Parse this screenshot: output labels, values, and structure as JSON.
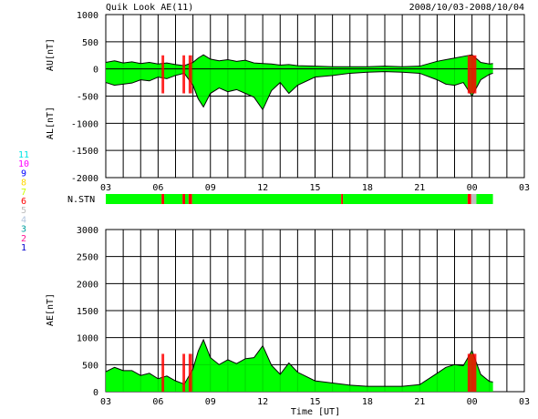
{
  "header": {
    "title": "Quik Look AE(11)",
    "date_range": "2008/10/03-2008/10/04"
  },
  "station_legend": {
    "numbers": [
      "11",
      "10",
      "9",
      "8",
      "7",
      "6",
      "5",
      "4",
      "3",
      "2",
      "1"
    ],
    "colors": [
      "#00e5e5",
      "#ff00ff",
      "#0000ff",
      "#ffd700",
      "#c8ff00",
      "#ff0000",
      "#bdbdbd",
      "#b0c4de",
      "#00a0a0",
      "#ff1493",
      "#0000cd"
    ]
  },
  "colors": {
    "fill": "#00ff00",
    "low_station": "#ff0000",
    "line": "#000000"
  },
  "chart_data": [
    {
      "type": "area",
      "name": "AU/AL",
      "ylabel_top": "AU[nT]",
      "ylabel_bottom": "AL[nT]",
      "ylim": [
        -2000,
        1000
      ],
      "yticks": [
        "1000",
        "500",
        "0",
        "-500",
        "-1000",
        "-1500",
        "-2000"
      ],
      "xticks": [
        "03",
        "06",
        "09",
        "12",
        "15",
        "18",
        "21",
        "00",
        "03"
      ],
      "xlim_hours": [
        3,
        27
      ],
      "grid": true,
      "au": {
        "x": [
          3,
          3.5,
          4,
          4.5,
          5,
          5.5,
          6,
          6.5,
          7,
          7.5,
          8,
          8.3,
          8.6,
          9,
          9.5,
          10,
          10.5,
          11,
          11.5,
          12,
          12.5,
          13,
          13.5,
          14,
          15,
          16,
          17,
          18,
          19,
          20,
          21,
          22,
          22.5,
          23,
          23.5,
          24,
          24.5,
          25,
          25.2
        ],
        "values": [
          120,
          150,
          110,
          130,
          100,
          120,
          90,
          110,
          80,
          60,
          120,
          200,
          260,
          180,
          150,
          170,
          140,
          160,
          110,
          100,
          90,
          70,
          80,
          60,
          50,
          40,
          40,
          40,
          50,
          40,
          50,
          140,
          170,
          200,
          230,
          260,
          120,
          90,
          100
        ]
      },
      "al": {
        "x": [
          3,
          3.5,
          4,
          4.5,
          5,
          5.5,
          6,
          6.5,
          7,
          7.5,
          8,
          8.3,
          8.6,
          9,
          9.5,
          10,
          10.5,
          11,
          11.5,
          12,
          12.5,
          13,
          13.5,
          14,
          15,
          16,
          17,
          18,
          19,
          20,
          21,
          22,
          22.5,
          23,
          23.5,
          24,
          24.5,
          25,
          25.2
        ],
        "values": [
          -250,
          -300,
          -280,
          -260,
          -200,
          -220,
          -150,
          -180,
          -120,
          -80,
          -300,
          -550,
          -700,
          -450,
          -350,
          -420,
          -380,
          -450,
          -520,
          -750,
          -400,
          -250,
          -450,
          -300,
          -150,
          -120,
          -80,
          -60,
          -50,
          -60,
          -80,
          -200,
          -280,
          -300,
          -250,
          -500,
          -200,
          -100,
          -80
        ]
      }
    },
    {
      "type": "area",
      "name": "AE",
      "ylabel": "AE[nT]",
      "ylim": [
        0,
        3000
      ],
      "yticks": [
        "3000",
        "2500",
        "2000",
        "1500",
        "1000",
        "500",
        "0"
      ],
      "xticks": [
        "03",
        "06",
        "09",
        "12",
        "15",
        "18",
        "21",
        "00",
        "03"
      ],
      "xlabel": "Time [UT]",
      "xlim_hours": [
        3,
        27
      ],
      "grid": true,
      "ae": {
        "x": [
          3,
          3.5,
          4,
          4.5,
          5,
          5.5,
          6,
          6.5,
          7,
          7.5,
          8,
          8.3,
          8.6,
          9,
          9.5,
          10,
          10.5,
          11,
          11.5,
          12,
          12.5,
          13,
          13.5,
          14,
          15,
          16,
          17,
          18,
          19,
          20,
          21,
          22,
          22.5,
          23,
          23.5,
          24,
          24.5,
          25,
          25.2
        ],
        "values": [
          370,
          450,
          390,
          390,
          300,
          340,
          240,
          290,
          200,
          140,
          420,
          750,
          960,
          630,
          500,
          590,
          520,
          610,
          630,
          850,
          490,
          320,
          530,
          360,
          200,
          160,
          120,
          100,
          100,
          100,
          130,
          340,
          450,
          500,
          480,
          760,
          320,
          190,
          180
        ]
      }
    },
    {
      "type": "heatmap",
      "name": "N.STN",
      "label": "N.STN",
      "segments": [
        {
          "x0": 3,
          "x1": 6.2,
          "stations": 11
        },
        {
          "x0": 6.2,
          "x1": 6.35,
          "stations": 6
        },
        {
          "x0": 6.35,
          "x1": 7.4,
          "stations": 11
        },
        {
          "x0": 7.4,
          "x1": 7.55,
          "stations": 6
        },
        {
          "x0": 7.55,
          "x1": 7.75,
          "stations": 11
        },
        {
          "x0": 7.75,
          "x1": 7.95,
          "stations": 6
        },
        {
          "x0": 7.95,
          "x1": 16.5,
          "stations": 11
        },
        {
          "x0": 16.5,
          "x1": 16.6,
          "stations": 6
        },
        {
          "x0": 16.6,
          "x1": 23.75,
          "stations": 11
        },
        {
          "x0": 23.75,
          "x1": 23.95,
          "stations": 6
        },
        {
          "x0": 23.95,
          "x1": 24.25,
          "stations": 5
        },
        {
          "x0": 24.25,
          "x1": 25.2,
          "stations": 11
        }
      ]
    }
  ]
}
